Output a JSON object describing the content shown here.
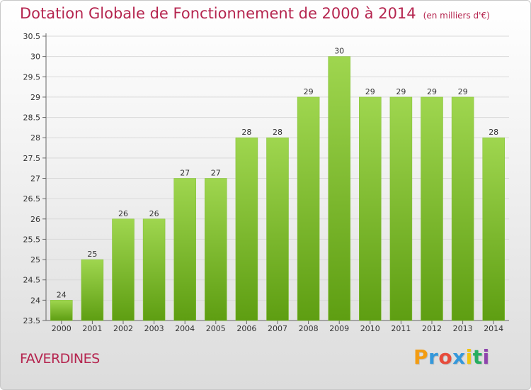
{
  "title": "Dotation Globale de Fonctionnement de 2000 à 2014",
  "unit_note": "(en milliers d'€)",
  "commune": "FAVERDINES",
  "logo": {
    "text": "Proxiti",
    "letters": [
      "P",
      "r",
      "o",
      "x",
      "i",
      "t",
      "i"
    ],
    "colors": [
      "#f39c12",
      "#3498db",
      "#e74c3c",
      "#3498db",
      "#f1c40f",
      "#27ae60",
      "#8e44ad"
    ]
  },
  "colors": {
    "bar_light": "#9fd64f",
    "bar_dark": "#5e9e12",
    "title": "#b5254f",
    "grid": "#d9d9d9"
  },
  "chart_data": {
    "type": "bar",
    "categories": [
      "2000",
      "2001",
      "2002",
      "2003",
      "2004",
      "2005",
      "2006",
      "2007",
      "2008",
      "2009",
      "2010",
      "2011",
      "2012",
      "2013",
      "2014"
    ],
    "values": [
      24,
      25,
      26,
      26,
      27,
      27,
      28,
      28,
      29,
      30,
      29,
      29,
      29,
      29,
      28
    ],
    "value_labels": [
      "24",
      "25",
      "26",
      "26",
      "27",
      "27",
      "28",
      "28",
      "29",
      "30",
      "29",
      "29",
      "29",
      "29",
      "28"
    ],
    "ylim": [
      23.5,
      30.5
    ],
    "yticks": [
      23.5,
      24,
      24.5,
      25,
      25.5,
      26,
      26.5,
      27,
      27.5,
      28,
      28.5,
      29,
      29.5,
      30,
      30.5
    ],
    "ytick_labels": [
      "23.5",
      "24",
      "24.5",
      "25",
      "25.5",
      "26",
      "26.5",
      "27",
      "27.5",
      "28",
      "28.5",
      "29",
      "29.5",
      "30",
      "30.5"
    ],
    "grid": true,
    "legend": "none"
  }
}
